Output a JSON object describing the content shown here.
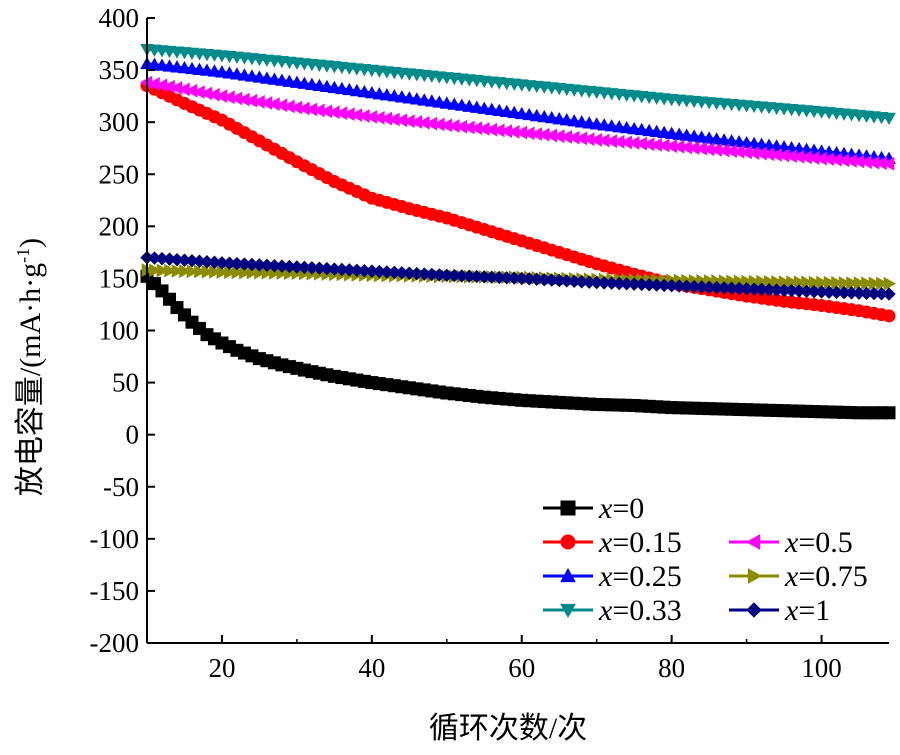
{
  "chart_data": {
    "type": "line",
    "title": "",
    "xlabel": "循环次数/次",
    "ylabel": "放电容量/(mA·h·g⁻¹)",
    "ylabel_parts": {
      "main": "放电容量/(mA·h·g",
      "sup": "-1",
      "end": ")"
    },
    "xlim": [
      10,
      109
    ],
    "ylim": [
      -200,
      400
    ],
    "x_ticks": [
      20,
      40,
      60,
      80,
      100
    ],
    "y_ticks": [
      400,
      350,
      300,
      250,
      200,
      150,
      100,
      50,
      0,
      -50,
      -100,
      -150,
      -200
    ],
    "grid": false,
    "legend_position": "bottom-right",
    "series": [
      {
        "name": "x=0",
        "var": "x",
        "suffix": "=0",
        "color": "#000000",
        "marker": "square",
        "points": [
          [
            10,
            152
          ],
          [
            12,
            138
          ],
          [
            14,
            122
          ],
          [
            16,
            108
          ],
          [
            18,
            96
          ],
          [
            20,
            88
          ],
          [
            22,
            81
          ],
          [
            25,
            73
          ],
          [
            28,
            67
          ],
          [
            31,
            62
          ],
          [
            35,
            56
          ],
          [
            40,
            50
          ],
          [
            45,
            45
          ],
          [
            50,
            40
          ],
          [
            55,
            36
          ],
          [
            60,
            33
          ],
          [
            65,
            31
          ],
          [
            70,
            29
          ],
          [
            75,
            28
          ],
          [
            80,
            26
          ],
          [
            85,
            25
          ],
          [
            90,
            24
          ],
          [
            95,
            23
          ],
          [
            100,
            22
          ],
          [
            105,
            21
          ],
          [
            109,
            21
          ]
        ]
      },
      {
        "name": "x=0.15",
        "var": "x",
        "suffix": "=0.15",
        "color": "#ff0000",
        "marker": "circle",
        "points": [
          [
            10,
            335
          ],
          [
            15,
            318
          ],
          [
            20,
            302
          ],
          [
            25,
            282
          ],
          [
            30,
            262
          ],
          [
            35,
            243
          ],
          [
            40,
            227
          ],
          [
            45,
            217
          ],
          [
            50,
            208
          ],
          [
            55,
            197
          ],
          [
            60,
            186
          ],
          [
            65,
            175
          ],
          [
            70,
            164
          ],
          [
            75,
            154
          ],
          [
            80,
            145
          ],
          [
            85,
            139
          ],
          [
            90,
            133
          ],
          [
            95,
            128
          ],
          [
            100,
            124
          ],
          [
            105,
            119
          ],
          [
            109,
            114
          ]
        ]
      },
      {
        "name": "x=0.25",
        "var": "x",
        "suffix": "=0.25",
        "color": "#0000ff",
        "marker": "triangle-up",
        "points": [
          [
            10,
            356
          ],
          [
            20,
            348
          ],
          [
            30,
            338
          ],
          [
            40,
            328
          ],
          [
            50,
            318
          ],
          [
            60,
            308
          ],
          [
            70,
            298
          ],
          [
            80,
            289
          ],
          [
            90,
            280
          ],
          [
            100,
            272
          ],
          [
            109,
            265
          ]
        ]
      },
      {
        "name": "x=0.33",
        "var": "x",
        "suffix": "=0.33",
        "color": "#008b8b",
        "marker": "triangle-down",
        "points": [
          [
            10,
            370
          ],
          [
            20,
            364
          ],
          [
            30,
            357
          ],
          [
            40,
            350
          ],
          [
            50,
            343
          ],
          [
            60,
            336
          ],
          [
            70,
            329
          ],
          [
            80,
            322
          ],
          [
            90,
            316
          ],
          [
            100,
            310
          ],
          [
            109,
            304
          ]
        ]
      },
      {
        "name": "x=0.5",
        "var": "x",
        "suffix": "=0.5",
        "color": "#ff00ff",
        "marker": "triangle-left",
        "points": [
          [
            10,
            338
          ],
          [
            20,
            325
          ],
          [
            30,
            314
          ],
          [
            40,
            305
          ],
          [
            50,
            297
          ],
          [
            60,
            290
          ],
          [
            70,
            283
          ],
          [
            80,
            277
          ],
          [
            90,
            271
          ],
          [
            100,
            265
          ],
          [
            109,
            260
          ]
        ]
      },
      {
        "name": "x=0.75",
        "var": "x",
        "suffix": "=0.75",
        "color": "#8b8b00",
        "marker": "triangle-right",
        "points": [
          [
            10,
            158
          ],
          [
            20,
            156
          ],
          [
            30,
            155
          ],
          [
            40,
            153
          ],
          [
            50,
            152
          ],
          [
            60,
            151
          ],
          [
            70,
            149
          ],
          [
            80,
            148
          ],
          [
            90,
            147
          ],
          [
            100,
            146
          ],
          [
            109,
            145
          ]
        ]
      },
      {
        "name": "x=1",
        "var": "x",
        "suffix": "=1",
        "color": "#000080",
        "marker": "diamond",
        "points": [
          [
            10,
            170
          ],
          [
            20,
            165
          ],
          [
            30,
            161
          ],
          [
            40,
            157
          ],
          [
            50,
            153
          ],
          [
            60,
            150
          ],
          [
            70,
            146
          ],
          [
            80,
            143
          ],
          [
            90,
            140
          ],
          [
            100,
            137
          ],
          [
            109,
            135
          ]
        ]
      }
    ]
  }
}
